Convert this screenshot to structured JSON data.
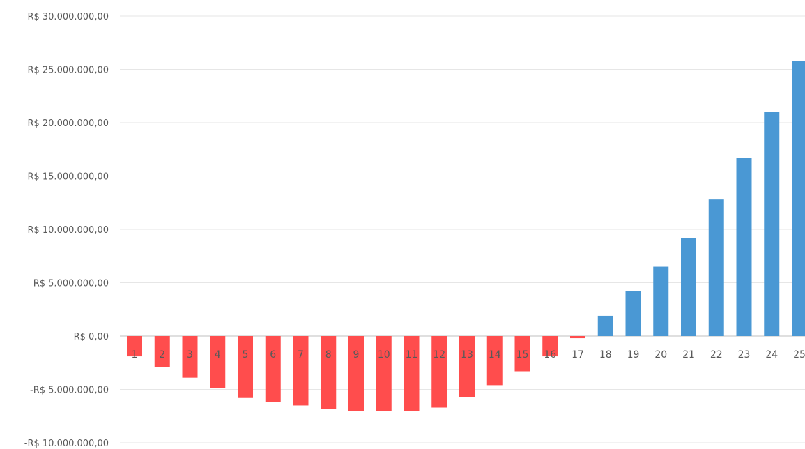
{
  "chart_data": {
    "type": "bar",
    "title": "",
    "xlabel": "",
    "ylabel": "",
    "categories": [
      "1",
      "2",
      "3",
      "4",
      "5",
      "6",
      "7",
      "8",
      "9",
      "10",
      "11",
      "12",
      "13",
      "14",
      "15",
      "16",
      "17",
      "18",
      "19",
      "20",
      "21",
      "22",
      "23",
      "24",
      "25"
    ],
    "values": [
      -1900000,
      -2900000,
      -3900000,
      -4900000,
      -5800000,
      -6200000,
      -6500000,
      -6800000,
      -7000000,
      -7000000,
      -7000000,
      -6700000,
      -5700000,
      -4600000,
      -3300000,
      -1900000,
      -200000,
      1900000,
      4200000,
      6500000,
      9200000,
      12800000,
      16700000,
      21000000,
      25800000
    ],
    "ylim": [
      -10000000,
      30000000
    ],
    "y_ticks": [
      "R$ 30.000.000,00",
      "R$ 25.000.000,00",
      "R$ 20.000.000,00",
      "R$ 15.000.000,00",
      "R$ 10.000.000,00",
      "R$ 5.000.000,00",
      "R$ 0,00",
      "-R$ 5.000.000,00",
      "-R$ 10.000.000,00"
    ],
    "y_tick_values": [
      30000000,
      25000000,
      20000000,
      15000000,
      10000000,
      5000000,
      0,
      -5000000,
      -10000000
    ],
    "negative_color": "#ff4d4d",
    "positive_color": "#4a98d4",
    "grid": true,
    "legend": "none"
  }
}
